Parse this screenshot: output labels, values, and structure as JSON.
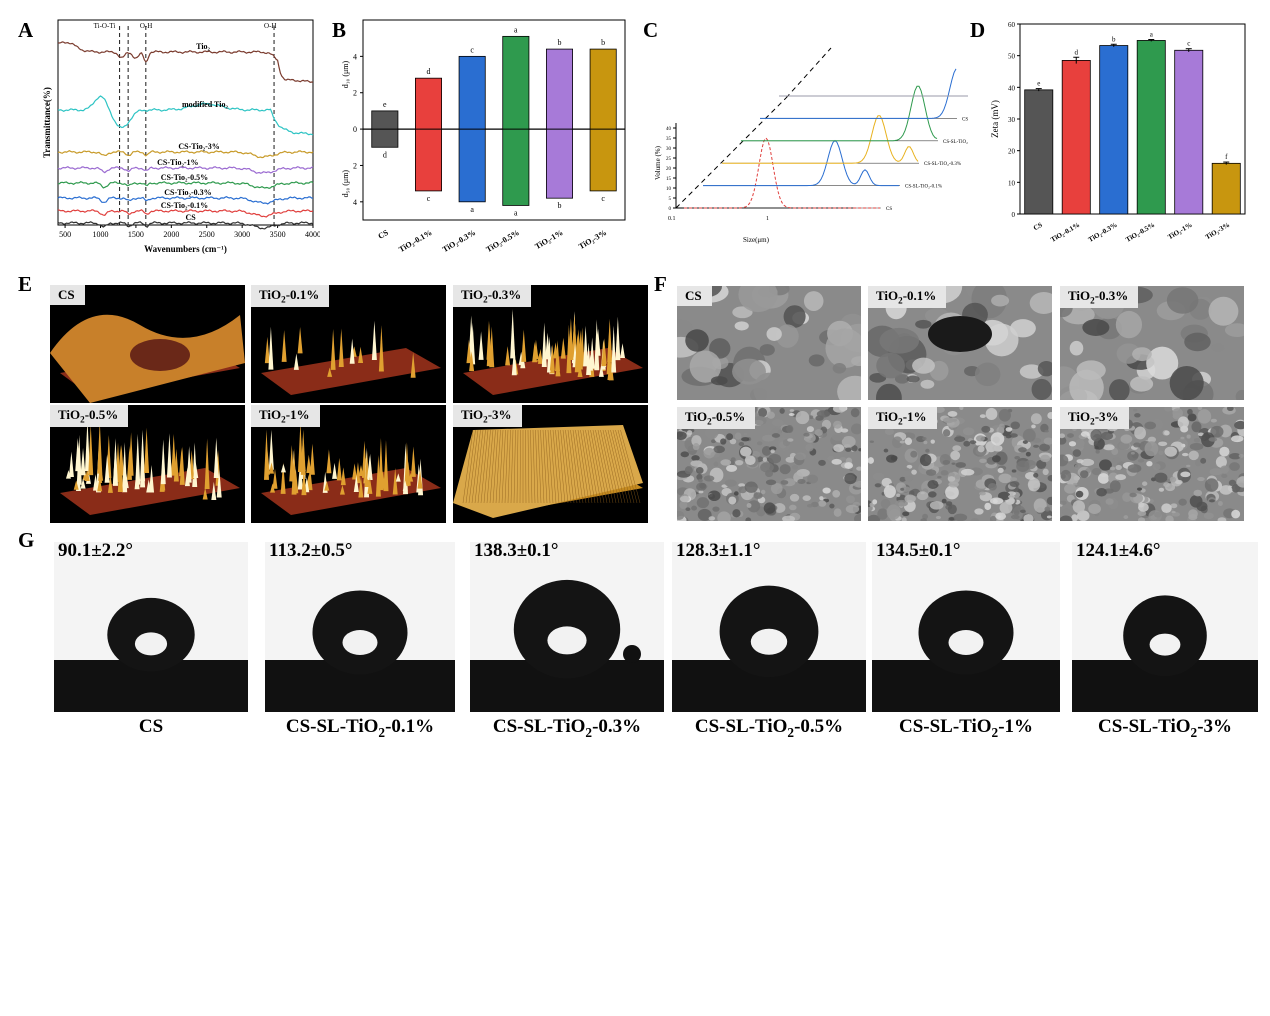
{
  "panel_letters": {
    "A": "A",
    "B": "B",
    "C": "C",
    "D": "D",
    "E": "E",
    "F": "F",
    "G": "G"
  },
  "chart_data": [
    {
      "panel": "A",
      "type": "line",
      "xlabel": "Wavenumbers (cm⁻¹)",
      "ylabel": "Transmittance(%)",
      "xlim": [
        400,
        4000
      ],
      "xticks": [
        500,
        1000,
        1500,
        2000,
        2500,
        3000,
        3500,
        4000
      ],
      "annotations": [
        "Ti-O-Ti",
        "O-H",
        "O-H"
      ],
      "series": [
        {
          "name": "TiO2",
          "label": "Tio₂",
          "color": "#7a3b2e"
        },
        {
          "name": "modified TiO2",
          "label": "modified  Tio₂",
          "color": "#2ec4c4"
        },
        {
          "name": "CS-TiO2-3%",
          "label": "CS-Tio₂-3%",
          "color": "#c89b2a"
        },
        {
          "name": "CS-TiO2-1%",
          "label": "CS-Tio₂-1%",
          "color": "#9b6bd1"
        },
        {
          "name": "CS-TiO2-0.5%",
          "label": "CS-Tio₂-0.5%",
          "color": "#2f9a4e"
        },
        {
          "name": "CS-TiO2-0.3%",
          "label": "CS-Tio₂-0.3%",
          "color": "#2a6ed1"
        },
        {
          "name": "CS-TiO2-0.1%",
          "label": "CS-Tio₂-0.1%",
          "color": "#e0403e"
        },
        {
          "name": "CS",
          "label": "CS",
          "color": "#333333"
        }
      ]
    },
    {
      "panel": "B",
      "type": "bar",
      "ylabel_top": "d₁₀ (μm)",
      "ylabel_bottom": "d₅₀ (μm)",
      "ylim": [
        -5,
        6
      ],
      "yticks": [
        "4",
        "2",
        "0",
        "2",
        "4"
      ],
      "categories": [
        "CS",
        "TiO₂-0.1%",
        "TiO₂-0.3%",
        "TiO₂-0.5%",
        "TiO₂-1%",
        "TiO₂-3%"
      ],
      "colors": [
        "#555555",
        "#e8403d",
        "#2a6ed1",
        "#2f9a4e",
        "#a77ad8",
        "#c8960f"
      ],
      "up_values": [
        1.0,
        2.8,
        4.0,
        5.1,
        4.4,
        4.4
      ],
      "down_values": [
        -1.0,
        -3.4,
        -4.0,
        -4.2,
        -3.8,
        -3.4
      ],
      "up_letters": [
        "e",
        "d",
        "c",
        "a",
        "b",
        "b"
      ],
      "down_letters": [
        "d",
        "c",
        "a",
        "a",
        "b",
        "c"
      ]
    },
    {
      "panel": "C",
      "type": "line",
      "xlabel": "Size(μm)",
      "ylabel": "Volume (%)",
      "yticks": [
        0,
        5,
        10,
        15,
        20,
        25,
        30,
        35,
        40
      ],
      "xticks": [
        "0.1",
        "1"
      ],
      "series": [
        {
          "name": "CS",
          "label": "CS",
          "color": "#e0403e"
        },
        {
          "name": "CS-SL-TiO2-0.1%",
          "label": "CS-SL-TiO₂-0.1%",
          "color": "#2a6ed1"
        },
        {
          "name": "CS-SL-TiO2-0.3%",
          "label": "CS-SL-TiO₂-0.3%",
          "color": "#e8b21f"
        },
        {
          "name": "CS-SL-TiO2-0.5%",
          "label": "CS-SL-TiO₂-0.5%",
          "color": "#2f9a4e"
        },
        {
          "name": "CS-SL-TiO2-1%",
          "label": "CS-SL-TiO₂-1%",
          "color": "#2a6ed1"
        },
        {
          "name": "CS-SL-TiO2-3%",
          "label": "CS-SL-TiO₂-3%",
          "color": "#9a9aa8"
        }
      ]
    },
    {
      "panel": "D",
      "type": "bar",
      "ylabel": "Zeta (mV)",
      "ylim": [
        0,
        60
      ],
      "yticks": [
        0,
        10,
        20,
        30,
        40,
        50,
        60
      ],
      "categories": [
        "CS",
        "TiO₂-0.1%",
        "TiO₂-0.3%",
        "TiO₂-0.5%",
        "TiO₂-1%",
        "TiO₂-3%"
      ],
      "colors": [
        "#555555",
        "#e8403d",
        "#2a6ed1",
        "#2f9a4e",
        "#a77ad8",
        "#c8960f"
      ],
      "values": [
        39.2,
        48.5,
        53.2,
        54.8,
        51.7,
        16.0
      ],
      "errors": [
        0.4,
        1.0,
        0.4,
        0.3,
        0.5,
        0.4
      ],
      "letters": [
        "e",
        "d",
        "b",
        "a",
        "c",
        "f"
      ]
    }
  ],
  "afm_tiles": [
    {
      "label": "CS",
      "sub": "",
      "suffix": ""
    },
    {
      "label": "TiO",
      "sub": "2",
      "suffix": "-0.1%"
    },
    {
      "label": "TiO",
      "sub": "2",
      "suffix": "-0.3%"
    },
    {
      "label": "TiO",
      "sub": "2",
      "suffix": "-0.5%"
    },
    {
      "label": "TiO",
      "sub": "2",
      "suffix": "-1%"
    },
    {
      "label": "TiO",
      "sub": "2",
      "suffix": "-3%"
    }
  ],
  "sem_tiles": [
    {
      "label": "CS",
      "sub": "",
      "suffix": ""
    },
    {
      "label": "TiO",
      "sub": "2",
      "suffix": "-0.1%"
    },
    {
      "label": "TiO",
      "sub": "2",
      "suffix": "-0.3%"
    },
    {
      "label": "TiO",
      "sub": "2",
      "suffix": "-0.5%"
    },
    {
      "label": "TiO",
      "sub": "2",
      "suffix": "-1%"
    },
    {
      "label": "TiO",
      "sub": "2",
      "suffix": "-3%"
    }
  ],
  "contact_angles": [
    {
      "angle": "90.1±2.2°",
      "caption": "CS",
      "sub": "",
      "suffix": ""
    },
    {
      "angle": "113.2±0.5°",
      "caption": "CS-SL-TiO",
      "sub": "2",
      "suffix": "-0.1%"
    },
    {
      "angle": "138.3±0.1°",
      "caption": "CS-SL-TiO",
      "sub": "2",
      "suffix": "-0.3%"
    },
    {
      "angle": "128.3±1.1°",
      "caption": "CS-SL-TiO",
      "sub": "2",
      "suffix": "-0.5%"
    },
    {
      "angle": "134.5±0.1°",
      "caption": "CS-SL-TiO",
      "sub": "2",
      "suffix": "-1%"
    },
    {
      "angle": "124.1±4.6°",
      "caption": "CS-SL-TiO",
      "sub": "2",
      "suffix": "-3%"
    }
  ]
}
